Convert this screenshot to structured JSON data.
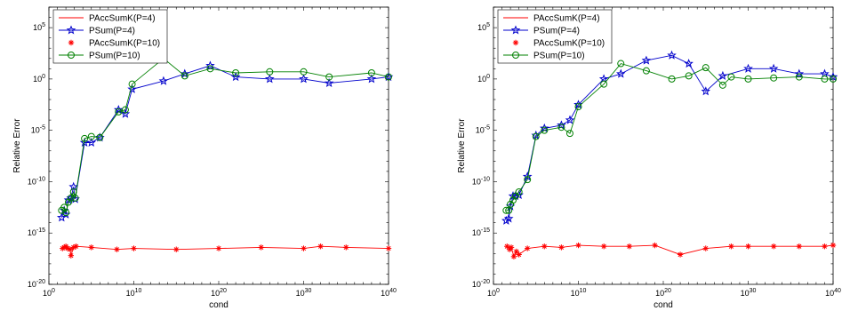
{
  "chart_data": [
    {
      "type": "line",
      "title": "",
      "xlabel": "cond",
      "ylabel": "Relative Error",
      "xscale": "log",
      "yscale": "log",
      "xlim_exp": [
        0,
        40
      ],
      "ylim_exp": [
        -20,
        7
      ],
      "x_tick_labels": [
        "10^0",
        "10^10",
        "10^20",
        "10^30",
        "10^40"
      ],
      "y_tick_labels": [
        "10^-20",
        "10^-15",
        "10^-10",
        "10^-5",
        "10^0",
        "10^5"
      ],
      "grid": false,
      "legend_position": "top-left",
      "series": [
        {
          "name": "PAccSumK(P=4)",
          "color": "#ff0000",
          "marker": "none",
          "log10_x": [
            1.6,
            1.8,
            2.0,
            2.2,
            2.5,
            2.6,
            2.9,
            3.2,
            5,
            8,
            10,
            15,
            20,
            25,
            30,
            32,
            35,
            40
          ],
          "log10_y": [
            -16.5,
            -16.4,
            -16.3,
            -16.5,
            -16.6,
            -17.2,
            -16.4,
            -16.3,
            -16.4,
            -16.6,
            -16.5,
            -16.6,
            -16.5,
            -16.4,
            -16.5,
            -16.3,
            -16.4,
            -16.5
          ]
        },
        {
          "name": "PSum(P=4)",
          "color": "#0000cc",
          "marker": "star",
          "log10_x": [
            1.5,
            1.8,
            2.0,
            2.3,
            2.6,
            2.9,
            3.1,
            4.2,
            5.0,
            6.0,
            8.2,
            9.0,
            9.8,
            13.5,
            16.0,
            19.0,
            22.0,
            26.0,
            30.0,
            33.0,
            38.0,
            40.0
          ],
          "log10_y": [
            -13.5,
            -12.8,
            -13.2,
            -11.8,
            -11.6,
            -10.5,
            -11.7,
            -6.2,
            -6.2,
            -5.7,
            -3.0,
            -3.4,
            -1.0,
            -0.2,
            0.5,
            1.3,
            0.2,
            0.0,
            0.0,
            -0.4,
            0.0,
            0.2
          ]
        },
        {
          "name": "PAccSumK(P=10)",
          "color": "#ff0000",
          "marker": "asterisk",
          "log10_x": [
            1.6,
            1.8,
            2.0,
            2.2,
            2.5,
            2.6,
            2.9,
            3.2,
            5,
            8,
            10,
            15,
            20,
            25,
            30,
            32,
            35,
            40
          ],
          "log10_y": [
            -16.5,
            -16.4,
            -16.3,
            -16.5,
            -16.6,
            -17.2,
            -16.4,
            -16.3,
            -16.4,
            -16.6,
            -16.5,
            -16.6,
            -16.5,
            -16.4,
            -16.5,
            -16.3,
            -16.4,
            -16.5
          ]
        },
        {
          "name": "PSum(P=10)",
          "color": "#008000",
          "marker": "circle",
          "log10_x": [
            1.5,
            1.8,
            2.0,
            2.3,
            2.6,
            2.9,
            3.1,
            4.2,
            5.0,
            6.0,
            8.2,
            9.0,
            9.8,
            13.5,
            16.0,
            19.0,
            22.0,
            26.0,
            30.0,
            33.0,
            38.0,
            40.0
          ],
          "log10_y": [
            -12.8,
            -12.5,
            -13.0,
            -12.0,
            -11.6,
            -11.0,
            -11.6,
            -5.8,
            -5.6,
            -5.7,
            -3.2,
            -3.0,
            -0.5,
            2.0,
            0.3,
            1.0,
            0.6,
            0.7,
            0.7,
            0.2,
            0.6,
            0.2
          ]
        }
      ]
    },
    {
      "type": "line",
      "title": "",
      "xlabel": "cond",
      "ylabel": "Relative Error",
      "xscale": "log",
      "yscale": "log",
      "xlim_exp": [
        0,
        40
      ],
      "ylim_exp": [
        -20,
        7
      ],
      "x_tick_labels": [
        "10^0",
        "10^10",
        "10^20",
        "10^30",
        "10^40"
      ],
      "y_tick_labels": [
        "10^-20",
        "10^-15",
        "10^-10",
        "10^-5",
        "10^0",
        "10^5"
      ],
      "grid": false,
      "legend_position": "top-left",
      "series": [
        {
          "name": "PAccSumK(P=4)",
          "color": "#ff0000",
          "marker": "none",
          "log10_x": [
            1.6,
            1.9,
            2.1,
            2.4,
            2.7,
            3.0,
            4,
            6,
            8,
            10,
            13,
            16,
            19,
            22,
            25,
            28,
            30,
            33,
            36,
            39,
            40
          ],
          "log10_y": [
            -16.3,
            -16.6,
            -16.4,
            -17.3,
            -16.8,
            -17.1,
            -16.5,
            -16.3,
            -16.4,
            -16.2,
            -16.3,
            -16.3,
            -16.2,
            -17.1,
            -16.5,
            -16.3,
            -16.3,
            -16.3,
            -16.3,
            -16.3,
            -16.2
          ]
        },
        {
          "name": "PSum(P=4)",
          "color": "#0000cc",
          "marker": "star",
          "log10_x": [
            1.5,
            1.8,
            2.0,
            2.3,
            2.6,
            3.0,
            4.0,
            5.0,
            6.0,
            8.0,
            9.0,
            10.0,
            13.0,
            15.0,
            18.0,
            21.0,
            23.0,
            25.0,
            27.0,
            30.0,
            33.0,
            36.0,
            39.0,
            40.0
          ],
          "log10_y": [
            -13.8,
            -13.6,
            -12.4,
            -11.4,
            -11.4,
            -11.3,
            -9.5,
            -5.5,
            -4.8,
            -4.5,
            -4.0,
            -2.5,
            0.0,
            0.5,
            1.8,
            2.3,
            1.5,
            -1.2,
            0.3,
            1.0,
            1.0,
            0.5,
            0.5,
            0.2
          ]
        },
        {
          "name": "PAccSumK(P=10)",
          "color": "#ff0000",
          "marker": "asterisk",
          "log10_x": [
            1.6,
            1.9,
            2.1,
            2.4,
            2.7,
            3.0,
            4,
            6,
            8,
            10,
            13,
            16,
            19,
            22,
            25,
            28,
            30,
            33,
            36,
            39,
            40
          ],
          "log10_y": [
            -16.3,
            -16.6,
            -16.4,
            -17.3,
            -16.8,
            -17.1,
            -16.5,
            -16.3,
            -16.4,
            -16.2,
            -16.3,
            -16.3,
            -16.2,
            -17.1,
            -16.5,
            -16.3,
            -16.3,
            -16.3,
            -16.3,
            -16.3,
            -16.2
          ]
        },
        {
          "name": "PSum(P=10)",
          "color": "#008000",
          "marker": "circle",
          "log10_x": [
            1.5,
            1.8,
            2.0,
            2.3,
            2.6,
            3.0,
            4.0,
            5.0,
            6.0,
            8.0,
            9.0,
            10.0,
            13.0,
            15.0,
            18.0,
            21.0,
            23.0,
            25.0,
            27.0,
            28.0,
            30.0,
            33.0,
            36.0,
            39.0,
            40.0
          ],
          "log10_y": [
            -12.8,
            -12.8,
            -12.2,
            -11.8,
            -11.4,
            -11.0,
            -9.8,
            -5.6,
            -5.0,
            -4.7,
            -5.3,
            -2.7,
            -0.5,
            1.5,
            0.8,
            0.0,
            0.3,
            1.1,
            -0.6,
            0.2,
            0.0,
            0.1,
            0.2,
            0.0,
            0.0
          ]
        }
      ]
    }
  ]
}
